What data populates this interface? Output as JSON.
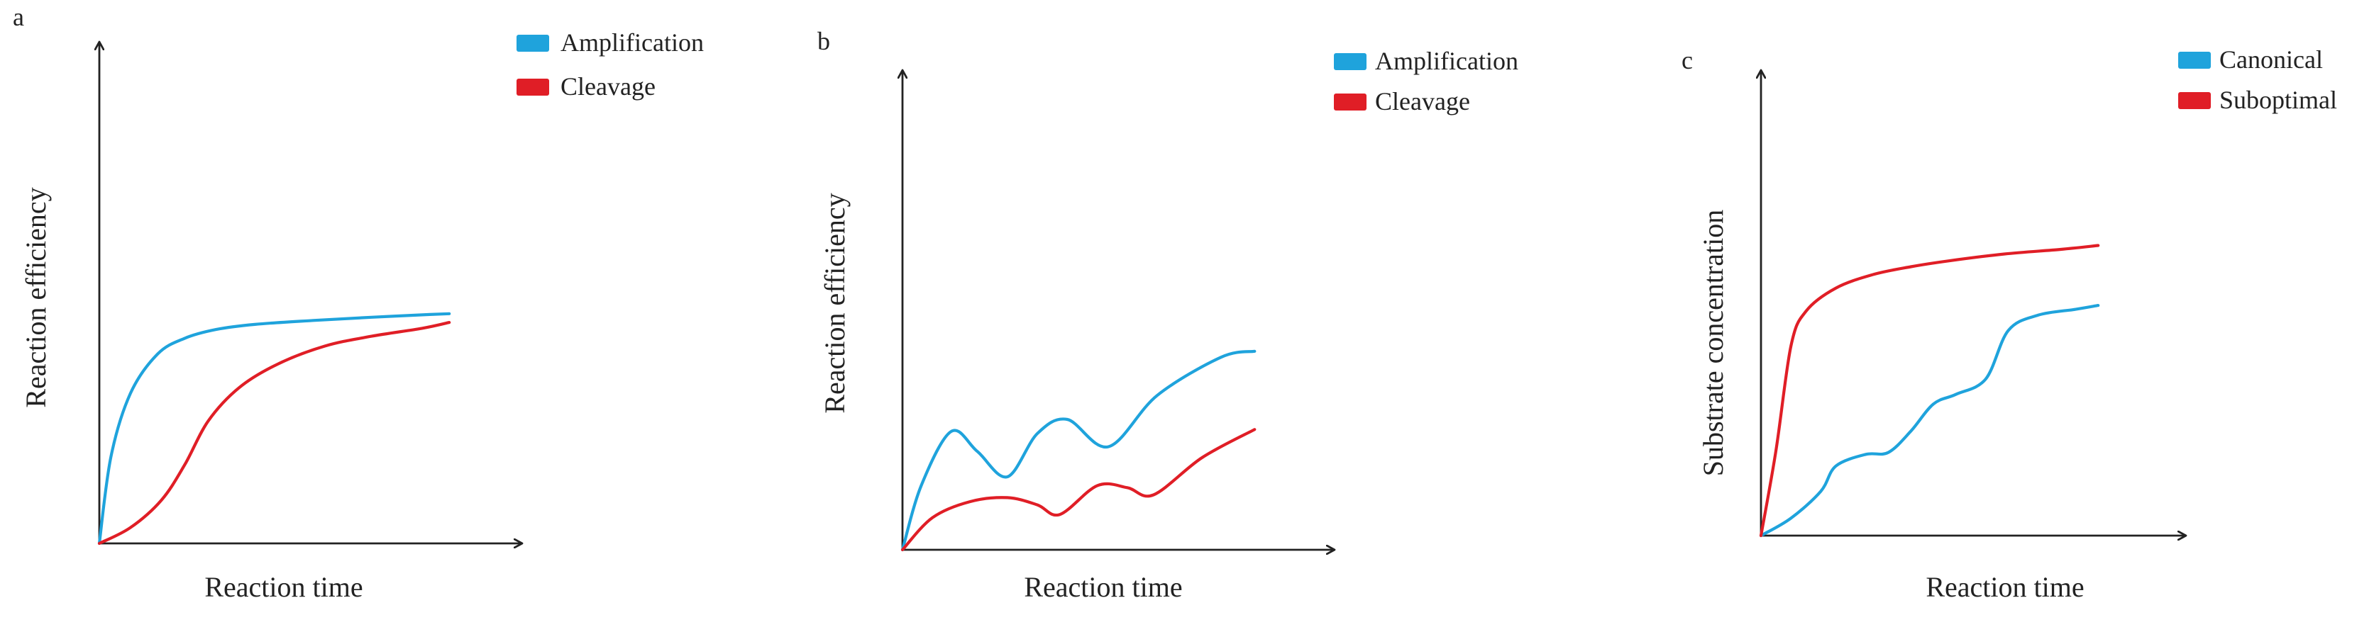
{
  "colors": {
    "amplification": "#1FA3DC",
    "cleavage": "#E01E26",
    "axis": "#222222"
  },
  "chart_data": [
    {
      "panel": "a",
      "type": "line",
      "title": "",
      "xlabel": "Reaction time",
      "ylabel": "Reaction efficiency",
      "xlim": [
        0,
        10
      ],
      "ylim": [
        0,
        10
      ],
      "ticks": "none",
      "legend_position": "top-right",
      "series": [
        {
          "name": "Amplification",
          "color": "#1FA3DC",
          "x": [
            0,
            0.3,
            0.8,
            1.5,
            2.2,
            3.0,
            4.0,
            5.5,
            7.0,
            8.5,
            9.0
          ],
          "y": [
            0,
            2.2,
            3.8,
            4.8,
            5.2,
            5.42,
            5.55,
            5.65,
            5.73,
            5.8,
            5.82
          ]
        },
        {
          "name": "Cleavage",
          "color": "#E01E26",
          "x": [
            0,
            0.8,
            1.6,
            2.2,
            2.8,
            3.6,
            4.6,
            5.8,
            7.0,
            8.3,
            9.0
          ],
          "y": [
            0,
            0.4,
            1.1,
            2.0,
            3.1,
            3.95,
            4.55,
            5.0,
            5.25,
            5.45,
            5.6
          ]
        }
      ]
    },
    {
      "panel": "b",
      "type": "line",
      "title": "",
      "xlabel": "Reaction time",
      "ylabel": "Reaction efficiency",
      "xlim": [
        0,
        10
      ],
      "ylim": [
        0,
        10
      ],
      "ticks": "none",
      "legend_position": "top-right",
      "series": [
        {
          "name": "Amplification",
          "color": "#1FA3DC",
          "x": [
            0,
            0.5,
            1.3,
            2.0,
            2.8,
            3.6,
            4.4,
            5.5,
            6.8,
            8.5,
            9.4
          ],
          "y": [
            0,
            1.6,
            2.95,
            2.45,
            1.82,
            2.9,
            3.25,
            2.57,
            3.85,
            4.8,
            4.95
          ]
        },
        {
          "name": "Cleavage",
          "color": "#E01E26",
          "x": [
            0,
            0.8,
            1.8,
            2.8,
            3.6,
            4.2,
            5.2,
            6.0,
            6.7,
            8.0,
            9.4
          ],
          "y": [
            0,
            0.8,
            1.2,
            1.3,
            1.12,
            0.88,
            1.6,
            1.55,
            1.37,
            2.3,
            3.0
          ]
        }
      ]
    },
    {
      "panel": "c",
      "type": "line",
      "title": "",
      "xlabel": "Reaction time",
      "ylabel": "Substrate concentration",
      "xlim": [
        0,
        10
      ],
      "ylim": [
        0,
        10
      ],
      "ticks": "none",
      "legend_position": "top-right",
      "series": [
        {
          "name": "Canonical",
          "color": "#1FA3DC",
          "x": [
            0,
            0.8,
            1.6,
            2.0,
            2.8,
            3.4,
            4.0,
            4.6,
            5.2,
            6.0,
            6.6,
            7.4,
            8.4,
            9.0
          ],
          "y": [
            0,
            0.45,
            1.15,
            1.8,
            2.1,
            2.15,
            2.7,
            3.4,
            3.65,
            4.05,
            5.3,
            5.7,
            5.85,
            5.95
          ]
        },
        {
          "name": "Suboptimal",
          "color": "#E01E26",
          "x": [
            0,
            0.4,
            0.8,
            1.2,
            2.0,
            3.0,
            4.0,
            5.0,
            6.5,
            8.0,
            9.0
          ],
          "y": [
            0,
            2.2,
            4.9,
            5.8,
            6.4,
            6.75,
            6.95,
            7.1,
            7.28,
            7.4,
            7.5
          ]
        }
      ]
    }
  ]
}
